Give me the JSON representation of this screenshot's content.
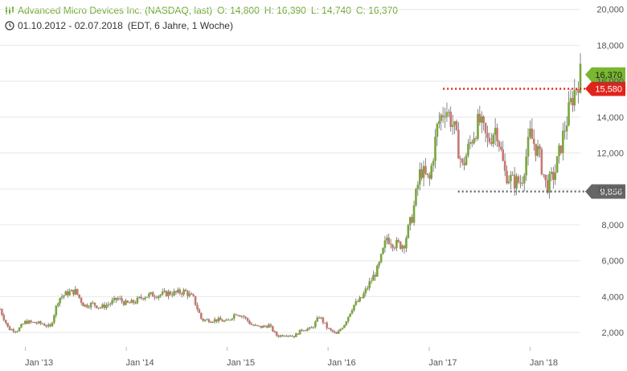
{
  "header": {
    "title": "Advanced Micro Devices Inc. (NASDAQ, last)",
    "open": "O: 14,800",
    "high": "H: 16,390",
    "low": "L: 14,740",
    "close": "C: 16,370",
    "range": "01.10.2012 - 02.07.2018",
    "info": "(EDT, 6 Jahre, 1 Woche)"
  },
  "colors": {
    "up_candle": "#7aa63c",
    "down_candle": "#c97870",
    "resistance": "#e2231a",
    "support": "#666666",
    "last_badge": "#78b72f",
    "grid": "#e8e8e8",
    "header_text": "#6aa62a"
  },
  "icons": {
    "chart": "candlestick-chart-icon",
    "clock": "clock-icon"
  },
  "chart_data": {
    "type": "candlestick",
    "x_ticks": [
      "Jan '13",
      "Jan '14",
      "Jan '15",
      "Jan '16",
      "Jan '17",
      "Jan '18"
    ],
    "x_tick_dates": [
      "2013-01-01",
      "2014-01-01",
      "2015-01-01",
      "2016-01-01",
      "2017-01-01",
      "2018-01-01"
    ],
    "x_range": [
      "2012-10-01",
      "2018-07-02"
    ],
    "y_ticks": [
      "2,000",
      "4,000",
      "6,000",
      "8,000",
      "10,000",
      "12,000",
      "14,000",
      "16,000",
      "18,000",
      "20,000"
    ],
    "y_tick_values": [
      2,
      4,
      6,
      8,
      10,
      12,
      14,
      16,
      18,
      20
    ],
    "ylim": [
      1.2,
      20.3
    ],
    "y_axis_side": "right",
    "grid": "horizontal",
    "series": [
      {
        "interval": "weekly",
        "weekly_close_points": [
          [
            "2012-10-01",
            3.3
          ],
          [
            "2012-11-01",
            2.2
          ],
          [
            "2012-12-01",
            2.1
          ],
          [
            "2013-01-01",
            2.6
          ],
          [
            "2013-03-01",
            2.5
          ],
          [
            "2013-04-01",
            2.3
          ],
          [
            "2013-05-01",
            3.9
          ],
          [
            "2013-06-01",
            4.2
          ],
          [
            "2013-07-01",
            4.3
          ],
          [
            "2013-08-01",
            3.5
          ],
          [
            "2013-09-01",
            3.6
          ],
          [
            "2013-10-01",
            3.4
          ],
          [
            "2013-11-01",
            3.6
          ],
          [
            "2013-12-01",
            3.9
          ],
          [
            "2014-01-01",
            3.6
          ],
          [
            "2014-02-01",
            3.7
          ],
          [
            "2014-03-01",
            4.0
          ],
          [
            "2014-04-01",
            4.1
          ],
          [
            "2014-05-01",
            4.1
          ],
          [
            "2014-06-01",
            4.2
          ],
          [
            "2014-07-01",
            4.2
          ],
          [
            "2014-08-01",
            4.3
          ],
          [
            "2014-09-01",
            3.9
          ],
          [
            "2014-10-01",
            2.7
          ],
          [
            "2014-12-01",
            2.7
          ],
          [
            "2015-01-01",
            2.6
          ],
          [
            "2015-02-01",
            3.1
          ],
          [
            "2015-03-01",
            2.9
          ],
          [
            "2015-04-01",
            2.4
          ],
          [
            "2015-05-01",
            2.3
          ],
          [
            "2015-06-01",
            2.4
          ],
          [
            "2015-07-01",
            1.8
          ],
          [
            "2015-08-01",
            1.9
          ],
          [
            "2015-09-01",
            1.8
          ],
          [
            "2015-10-01",
            2.2
          ],
          [
            "2015-11-01",
            2.2
          ],
          [
            "2015-12-01",
            2.9
          ],
          [
            "2016-01-01",
            2.2
          ],
          [
            "2016-02-01",
            1.9
          ],
          [
            "2016-03-01",
            2.5
          ],
          [
            "2016-04-01",
            3.5
          ],
          [
            "2016-05-01",
            3.9
          ],
          [
            "2016-06-01",
            4.8
          ],
          [
            "2016-07-01",
            5.6
          ],
          [
            "2016-08-01",
            7.3
          ],
          [
            "2016-09-01",
            6.9
          ],
          [
            "2016-10-01",
            6.9
          ],
          [
            "2016-11-01",
            8.5
          ],
          [
            "2016-12-01",
            11.1
          ],
          [
            "2017-01-01",
            10.4
          ],
          [
            "2017-02-01",
            13.6
          ],
          [
            "2017-03-01",
            14.6
          ],
          [
            "2017-04-01",
            13.4
          ],
          [
            "2017-05-01",
            11.2
          ],
          [
            "2017-06-01",
            12.7
          ],
          [
            "2017-07-01",
            13.8
          ],
          [
            "2017-08-01",
            12.6
          ],
          [
            "2017-09-01",
            13.5
          ],
          [
            "2017-10-01",
            10.9
          ],
          [
            "2017-11-01",
            10.4
          ],
          [
            "2017-12-01",
            10.4
          ],
          [
            "2018-01-01",
            13.0
          ],
          [
            "2018-02-01",
            12.0
          ],
          [
            "2018-03-01",
            10.1
          ],
          [
            "2018-04-01",
            10.9
          ],
          [
            "2018-05-01",
            13.0
          ],
          [
            "2018-06-01",
            15.0
          ],
          [
            "2018-07-02",
            16.37
          ]
        ]
      }
    ],
    "levels": [
      {
        "value": 15.58,
        "label": "15,580",
        "style": "dotted",
        "color": "red",
        "from": "2017-02-20"
      },
      {
        "value": 9.856,
        "label": "9,856",
        "style": "dotted",
        "color": "gray",
        "from": "2017-04-15"
      }
    ],
    "last_value": {
      "value": 16.37,
      "label": "16,370"
    }
  }
}
